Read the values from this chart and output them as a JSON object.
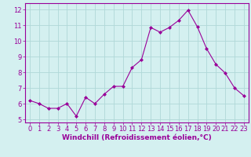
{
  "x": [
    0,
    1,
    2,
    3,
    4,
    5,
    6,
    7,
    8,
    9,
    10,
    11,
    12,
    13,
    14,
    15,
    16,
    17,
    18,
    19,
    20,
    21,
    22,
    23
  ],
  "y": [
    6.2,
    6.0,
    5.7,
    5.7,
    6.0,
    5.2,
    6.4,
    6.0,
    6.6,
    7.1,
    7.1,
    8.3,
    8.8,
    10.85,
    10.55,
    10.85,
    11.3,
    11.95,
    10.9,
    9.5,
    8.5,
    7.95,
    7.0,
    6.5
  ],
  "line_color": "#990099",
  "marker": "D",
  "marker_size": 2.0,
  "bg_color": "#d4f0f0",
  "grid_color": "#b0d8d8",
  "xlabel": "Windchill (Refroidissement éolien,°C)",
  "ylabel": "",
  "xlim": [
    -0.5,
    23.5
  ],
  "ylim": [
    4.8,
    12.4
  ],
  "yticks": [
    5,
    6,
    7,
    8,
    9,
    10,
    11,
    12
  ],
  "xticks": [
    0,
    1,
    2,
    3,
    4,
    5,
    6,
    7,
    8,
    9,
    10,
    11,
    12,
    13,
    14,
    15,
    16,
    17,
    18,
    19,
    20,
    21,
    22,
    23
  ],
  "tick_fontsize": 6,
  "xlabel_fontsize": 6.5,
  "border_color": "#990099",
  "spine_color": "#990099"
}
